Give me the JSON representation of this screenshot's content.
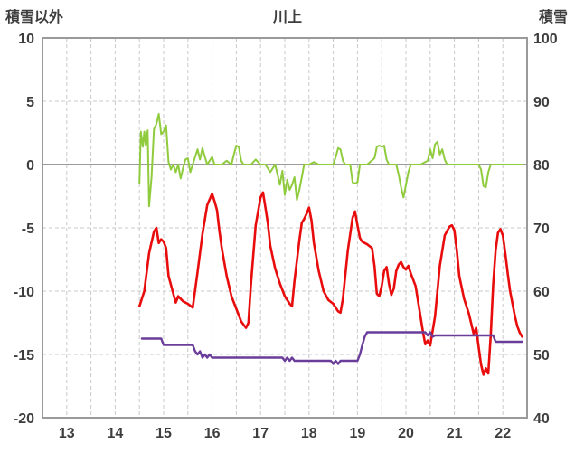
{
  "chart_data": {
    "type": "line",
    "title": "川上",
    "left_axis": {
      "label": "積雪以外",
      "min": -20,
      "max": 10,
      "ticks": [
        10,
        5,
        0,
        -5,
        -10,
        -15,
        -20
      ]
    },
    "right_axis": {
      "label": "積雪",
      "min": 40,
      "max": 100,
      "ticks": [
        100,
        90,
        80,
        70,
        60,
        50,
        40
      ]
    },
    "x_axis": {
      "min": 13,
      "max": 23,
      "gridline_step": 0.5,
      "labels": [
        {
          "text": "13",
          "center": 13.5
        },
        {
          "text": "14",
          "center": 14.5
        },
        {
          "text": "15",
          "center": 15.5
        },
        {
          "text": "16",
          "center": 16.5
        },
        {
          "text": "17",
          "center": 17.5
        },
        {
          "text": "18",
          "center": 18.5
        },
        {
          "text": "19",
          "center": 19.5
        },
        {
          "text": "20",
          "center": 20.5
        },
        {
          "text": "21",
          "center": 21.5
        },
        {
          "text": "22",
          "center": 22.5
        }
      ]
    },
    "grid": true,
    "legend": "none",
    "series": [
      {
        "name": "green",
        "axis": "left",
        "color": "#8fcb3c",
        "width": 2,
        "points": [
          [
            15.0,
            -1.5
          ],
          [
            15.03,
            2.6
          ],
          [
            15.07,
            1.4
          ],
          [
            15.1,
            2.6
          ],
          [
            15.13,
            1.5
          ],
          [
            15.17,
            2.7
          ],
          [
            15.2,
            -3.3
          ],
          [
            15.25,
            -1.0
          ],
          [
            15.3,
            2.8
          ],
          [
            15.35,
            3.2
          ],
          [
            15.4,
            4.0
          ],
          [
            15.45,
            2.4
          ],
          [
            15.5,
            2.6
          ],
          [
            15.55,
            3.1
          ],
          [
            15.6,
            0.2
          ],
          [
            15.65,
            -0.4
          ],
          [
            15.7,
            0.0
          ],
          [
            15.75,
            -0.6
          ],
          [
            15.8,
            0.0
          ],
          [
            15.85,
            -1.1
          ],
          [
            15.9,
            -0.3
          ],
          [
            15.95,
            0.4
          ],
          [
            16.0,
            0.5
          ],
          [
            16.05,
            -0.6
          ],
          [
            16.1,
            0.0
          ],
          [
            16.15,
            0.6
          ],
          [
            16.2,
            1.2
          ],
          [
            16.25,
            0.4
          ],
          [
            16.3,
            1.3
          ],
          [
            16.35,
            0.6
          ],
          [
            16.4,
            0.0
          ],
          [
            16.45,
            0.3
          ],
          [
            16.5,
            0.6
          ],
          [
            16.55,
            0.0
          ],
          [
            16.6,
            0.0
          ],
          [
            16.7,
            0.0
          ],
          [
            16.8,
            0.3
          ],
          [
            16.9,
            0.0
          ],
          [
            16.95,
            0.8
          ],
          [
            17.0,
            1.5
          ],
          [
            17.05,
            1.4
          ],
          [
            17.1,
            0.3
          ],
          [
            17.15,
            0.0
          ],
          [
            17.3,
            0.0
          ],
          [
            17.4,
            0.4
          ],
          [
            17.5,
            0.0
          ],
          [
            17.6,
            0.0
          ],
          [
            17.7,
            -0.6
          ],
          [
            17.8,
            0.0
          ],
          [
            17.85,
            -0.8
          ],
          [
            17.9,
            -1.6
          ],
          [
            17.95,
            -0.5
          ],
          [
            18.0,
            -2.4
          ],
          [
            18.05,
            -1.2
          ],
          [
            18.1,
            -2.0
          ],
          [
            18.15,
            -1.6
          ],
          [
            18.2,
            -1.0
          ],
          [
            18.25,
            -2.8
          ],
          [
            18.3,
            -2.0
          ],
          [
            18.35,
            -1.0
          ],
          [
            18.4,
            0.0
          ],
          [
            18.5,
            0.0
          ],
          [
            18.6,
            0.2
          ],
          [
            18.7,
            0.0
          ],
          [
            18.9,
            0.0
          ],
          [
            19.0,
            0.0
          ],
          [
            19.05,
            0.6
          ],
          [
            19.1,
            1.3
          ],
          [
            19.15,
            1.2
          ],
          [
            19.2,
            0.3
          ],
          [
            19.25,
            0.0
          ],
          [
            19.35,
            0.0
          ],
          [
            19.4,
            -1.4
          ],
          [
            19.45,
            -1.5
          ],
          [
            19.5,
            -1.4
          ],
          [
            19.55,
            0.0
          ],
          [
            19.7,
            0.0
          ],
          [
            19.85,
            0.5
          ],
          [
            19.9,
            1.4
          ],
          [
            19.95,
            1.5
          ],
          [
            20.0,
            1.4
          ],
          [
            20.05,
            1.5
          ],
          [
            20.1,
            0.4
          ],
          [
            20.15,
            0.0
          ],
          [
            20.3,
            0.0
          ],
          [
            20.35,
            -0.8
          ],
          [
            20.4,
            -1.8
          ],
          [
            20.45,
            -2.6
          ],
          [
            20.5,
            -1.6
          ],
          [
            20.55,
            -0.6
          ],
          [
            20.6,
            0.0
          ],
          [
            20.8,
            0.0
          ],
          [
            20.95,
            0.3
          ],
          [
            21.0,
            1.2
          ],
          [
            21.05,
            0.5
          ],
          [
            21.1,
            1.6
          ],
          [
            21.15,
            1.8
          ],
          [
            21.2,
            0.8
          ],
          [
            21.25,
            1.2
          ],
          [
            21.3,
            0.4
          ],
          [
            21.35,
            0.0
          ],
          [
            21.5,
            0.0
          ],
          [
            21.7,
            0.0
          ],
          [
            21.9,
            0.0
          ],
          [
            22.0,
            0.0
          ],
          [
            22.05,
            -0.4
          ],
          [
            22.1,
            -1.7
          ],
          [
            22.15,
            -1.8
          ],
          [
            22.2,
            -0.6
          ],
          [
            22.25,
            0.0
          ],
          [
            22.4,
            0.0
          ],
          [
            22.6,
            0.0
          ],
          [
            22.9,
            0.0
          ]
        ]
      },
      {
        "name": "red",
        "axis": "left",
        "color": "#e80c0c",
        "width": 2.6,
        "points": [
          [
            15.0,
            -11.2
          ],
          [
            15.1,
            -10.0
          ],
          [
            15.2,
            -7.0
          ],
          [
            15.3,
            -5.3
          ],
          [
            15.35,
            -5.0
          ],
          [
            15.4,
            -6.2
          ],
          [
            15.45,
            -5.9
          ],
          [
            15.5,
            -6.1
          ],
          [
            15.55,
            -6.6
          ],
          [
            15.6,
            -8.8
          ],
          [
            15.7,
            -10.2
          ],
          [
            15.75,
            -10.9
          ],
          [
            15.8,
            -10.4
          ],
          [
            15.9,
            -10.8
          ],
          [
            16.0,
            -11.0
          ],
          [
            16.1,
            -11.3
          ],
          [
            16.2,
            -8.5
          ],
          [
            16.3,
            -5.5
          ],
          [
            16.4,
            -3.2
          ],
          [
            16.5,
            -2.3
          ],
          [
            16.55,
            -2.9
          ],
          [
            16.6,
            -3.6
          ],
          [
            16.65,
            -5.2
          ],
          [
            16.7,
            -6.6
          ],
          [
            16.8,
            -8.8
          ],
          [
            16.9,
            -10.4
          ],
          [
            17.0,
            -11.4
          ],
          [
            17.1,
            -12.4
          ],
          [
            17.2,
            -12.9
          ],
          [
            17.25,
            -12.5
          ],
          [
            17.3,
            -9.5
          ],
          [
            17.4,
            -4.8
          ],
          [
            17.5,
            -2.6
          ],
          [
            17.55,
            -2.2
          ],
          [
            17.6,
            -3.4
          ],
          [
            17.65,
            -4.6
          ],
          [
            17.7,
            -6.4
          ],
          [
            17.8,
            -8.2
          ],
          [
            17.9,
            -9.4
          ],
          [
            18.0,
            -10.4
          ],
          [
            18.1,
            -11.0
          ],
          [
            18.15,
            -11.2
          ],
          [
            18.2,
            -9.2
          ],
          [
            18.3,
            -6.0
          ],
          [
            18.35,
            -4.6
          ],
          [
            18.4,
            -4.3
          ],
          [
            18.45,
            -3.9
          ],
          [
            18.5,
            -3.4
          ],
          [
            18.55,
            -4.4
          ],
          [
            18.6,
            -6.2
          ],
          [
            18.7,
            -8.4
          ],
          [
            18.8,
            -10.0
          ],
          [
            18.9,
            -10.7
          ],
          [
            19.0,
            -11.0
          ],
          [
            19.1,
            -11.6
          ],
          [
            19.15,
            -11.7
          ],
          [
            19.2,
            -10.6
          ],
          [
            19.3,
            -6.8
          ],
          [
            19.4,
            -4.2
          ],
          [
            19.45,
            -3.7
          ],
          [
            19.5,
            -4.8
          ],
          [
            19.55,
            -5.8
          ],
          [
            19.6,
            -6.1
          ],
          [
            19.7,
            -6.3
          ],
          [
            19.8,
            -6.6
          ],
          [
            19.85,
            -8.0
          ],
          [
            19.9,
            -10.2
          ],
          [
            19.95,
            -10.4
          ],
          [
            20.0,
            -9.6
          ],
          [
            20.05,
            -8.4
          ],
          [
            20.1,
            -8.1
          ],
          [
            20.15,
            -9.4
          ],
          [
            20.2,
            -10.3
          ],
          [
            20.25,
            -9.8
          ],
          [
            20.3,
            -8.4
          ],
          [
            20.35,
            -7.9
          ],
          [
            20.4,
            -7.7
          ],
          [
            20.45,
            -8.1
          ],
          [
            20.5,
            -8.3
          ],
          [
            20.55,
            -8.0
          ],
          [
            20.6,
            -8.6
          ],
          [
            20.7,
            -9.6
          ],
          [
            20.75,
            -10.8
          ],
          [
            20.8,
            -12.0
          ],
          [
            20.85,
            -13.2
          ],
          [
            20.9,
            -14.2
          ],
          [
            20.95,
            -13.9
          ],
          [
            21.0,
            -14.3
          ],
          [
            21.1,
            -12.0
          ],
          [
            21.2,
            -8.0
          ],
          [
            21.3,
            -5.6
          ],
          [
            21.4,
            -4.9
          ],
          [
            21.45,
            -4.8
          ],
          [
            21.5,
            -5.2
          ],
          [
            21.55,
            -6.8
          ],
          [
            21.6,
            -8.8
          ],
          [
            21.7,
            -10.6
          ],
          [
            21.8,
            -11.8
          ],
          [
            21.9,
            -13.4
          ],
          [
            21.95,
            -12.9
          ],
          [
            22.0,
            -14.4
          ],
          [
            22.05,
            -15.8
          ],
          [
            22.1,
            -16.6
          ],
          [
            22.15,
            -16.1
          ],
          [
            22.2,
            -16.5
          ],
          [
            22.25,
            -13.5
          ],
          [
            22.3,
            -9.5
          ],
          [
            22.35,
            -6.8
          ],
          [
            22.4,
            -5.4
          ],
          [
            22.45,
            -5.1
          ],
          [
            22.5,
            -5.6
          ],
          [
            22.55,
            -7.0
          ],
          [
            22.6,
            -8.6
          ],
          [
            22.65,
            -10.0
          ],
          [
            22.7,
            -11.0
          ],
          [
            22.75,
            -12.0
          ],
          [
            22.8,
            -12.8
          ],
          [
            22.85,
            -13.3
          ],
          [
            22.9,
            -13.6
          ]
        ]
      },
      {
        "name": "purple",
        "axis": "right",
        "color": "#6a3d9a",
        "width": 2.4,
        "points": [
          [
            15.05,
            52.5
          ],
          [
            15.45,
            52.5
          ],
          [
            15.5,
            51.5
          ],
          [
            16.1,
            51.5
          ],
          [
            16.15,
            50.5
          ],
          [
            16.2,
            50.0
          ],
          [
            16.25,
            50.5
          ],
          [
            16.3,
            49.5
          ],
          [
            16.35,
            50.0
          ],
          [
            16.4,
            49.5
          ],
          [
            16.45,
            50.0
          ],
          [
            16.5,
            49.5
          ],
          [
            17.95,
            49.5
          ],
          [
            18.0,
            49.0
          ],
          [
            18.05,
            49.5
          ],
          [
            18.1,
            49.0
          ],
          [
            18.15,
            49.5
          ],
          [
            18.2,
            49.0
          ],
          [
            18.95,
            49.0
          ],
          [
            19.0,
            48.5
          ],
          [
            19.05,
            49.0
          ],
          [
            19.1,
            48.5
          ],
          [
            19.15,
            49.0
          ],
          [
            19.5,
            49.0
          ],
          [
            19.55,
            50.0
          ],
          [
            19.6,
            51.5
          ],
          [
            19.65,
            52.8
          ],
          [
            19.7,
            53.5
          ],
          [
            20.9,
            53.5
          ],
          [
            20.95,
            53.0
          ],
          [
            21.0,
            53.5
          ],
          [
            21.05,
            52.8
          ],
          [
            21.1,
            53.0
          ],
          [
            22.3,
            53.0
          ],
          [
            22.35,
            52.0
          ],
          [
            22.9,
            52.0
          ]
        ]
      }
    ],
    "colors": {
      "grid_dashed": "#c9c9c9",
      "grid_solid": "#9a9a9a",
      "border": "#9a9a9a",
      "tick_text": "#3d3d3d"
    }
  }
}
